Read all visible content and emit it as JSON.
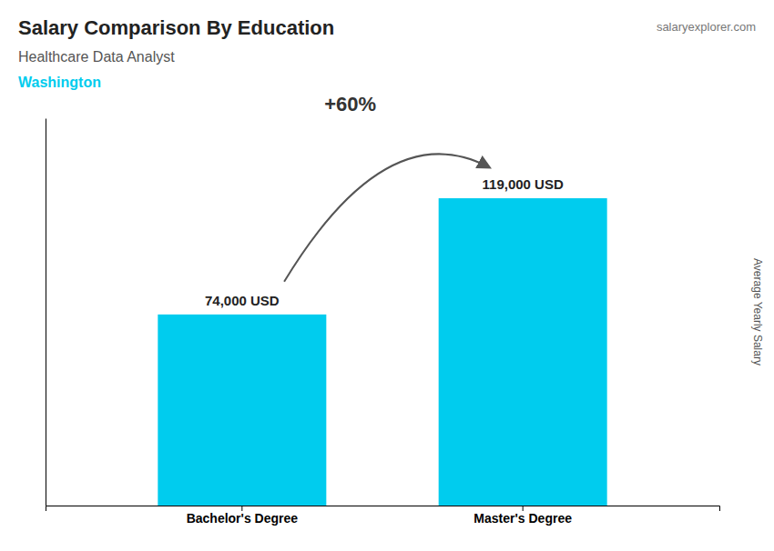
{
  "chart_data": {
    "type": "bar",
    "title": "Salary Comparison By Education",
    "subtitle": "Healthcare Data Analyst",
    "y_label": "Average Yearly Salary",
    "categories": [
      "Bachelor's Degree",
      "Master's Degree"
    ],
    "values": [
      74000,
      119000
    ],
    "value_labels": [
      "74,000 USD",
      "119,000 USD"
    ],
    "data_labels": true,
    "color": "#00CCEE",
    "ylim": [
      0,
      150000
    ],
    "tick_labels": "x",
    "annotations": [
      {
        "text": "Washington"
      },
      {
        "text": "+60%"
      },
      {
        "text": "salaryexplorer.com"
      }
    ]
  }
}
